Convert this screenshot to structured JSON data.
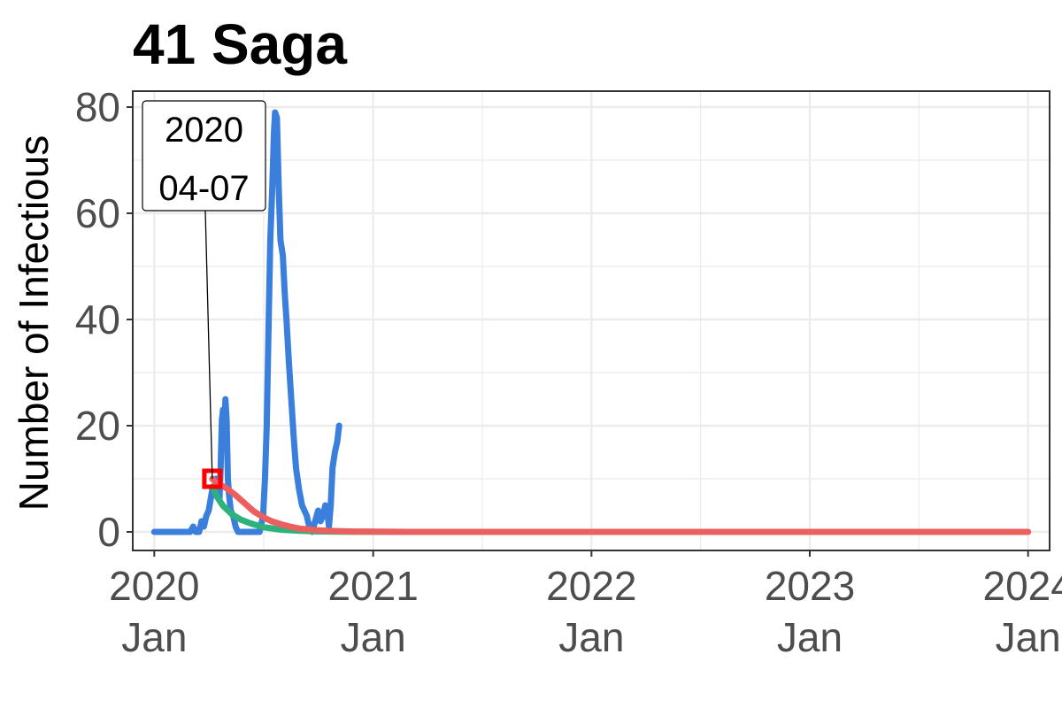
{
  "chart_data": {
    "type": "line",
    "title": "41 Saga",
    "xlabel": "",
    "ylabel": "Number of Infectious",
    "xlim": [
      "2019-11-26",
      "2024-02-06"
    ],
    "ylim": [
      -3.5,
      83
    ],
    "yticks": [
      0,
      20,
      40,
      60,
      80
    ],
    "xticks": [
      {
        "date": "2020-01-01",
        "year": "2020",
        "month": "Jan"
      },
      {
        "date": "2021-01-01",
        "year": "2021",
        "month": "Jan"
      },
      {
        "date": "2022-01-01",
        "year": "2022",
        "month": "Jan"
      },
      {
        "date": "2023-01-01",
        "year": "2023",
        "month": "Jan"
      },
      {
        "date": "2024-01-01",
        "year": "2024",
        "month": "Jan"
      }
    ],
    "grid": true,
    "legend": "none",
    "series": [
      {
        "color": "#3a7fdc",
        "points": [
          [
            "2020-01-01",
            0
          ],
          [
            "2020-03-01",
            0
          ],
          [
            "2020-03-06",
            1
          ],
          [
            "2020-03-10",
            0
          ],
          [
            "2020-03-16",
            0
          ],
          [
            "2020-03-20",
            2
          ],
          [
            "2020-03-24",
            1
          ],
          [
            "2020-03-28",
            3
          ],
          [
            "2020-04-01",
            4
          ],
          [
            "2020-04-04",
            6
          ],
          [
            "2020-04-07",
            8
          ],
          [
            "2020-04-10",
            7
          ],
          [
            "2020-04-13",
            10
          ],
          [
            "2020-04-16",
            9
          ],
          [
            "2020-04-19",
            6
          ],
          [
            "2020-04-21",
            12
          ],
          [
            "2020-04-23",
            21
          ],
          [
            "2020-04-25",
            23
          ],
          [
            "2020-04-27",
            17
          ],
          [
            "2020-04-29",
            25
          ],
          [
            "2020-05-01",
            21
          ],
          [
            "2020-05-03",
            10
          ],
          [
            "2020-05-05",
            7
          ],
          [
            "2020-05-08",
            4
          ],
          [
            "2020-05-12",
            3
          ],
          [
            "2020-05-16",
            1
          ],
          [
            "2020-05-20",
            0
          ],
          [
            "2020-06-25",
            0
          ],
          [
            "2020-07-01",
            3
          ],
          [
            "2020-07-04",
            10
          ],
          [
            "2020-07-07",
            20
          ],
          [
            "2020-07-10",
            38
          ],
          [
            "2020-07-13",
            55
          ],
          [
            "2020-07-16",
            64
          ],
          [
            "2020-07-19",
            75
          ],
          [
            "2020-07-21",
            79
          ],
          [
            "2020-07-24",
            78
          ],
          [
            "2020-07-27",
            65
          ],
          [
            "2020-07-30",
            55
          ],
          [
            "2020-08-03",
            52
          ],
          [
            "2020-08-06",
            45
          ],
          [
            "2020-08-09",
            40
          ],
          [
            "2020-08-13",
            32
          ],
          [
            "2020-08-17",
            25
          ],
          [
            "2020-08-21",
            18
          ],
          [
            "2020-08-25",
            12
          ],
          [
            "2020-08-30",
            8
          ],
          [
            "2020-09-04",
            5
          ],
          [
            "2020-09-08",
            4
          ],
          [
            "2020-09-12",
            3
          ],
          [
            "2020-09-16",
            1
          ],
          [
            "2020-09-21",
            0
          ],
          [
            "2020-09-26",
            2
          ],
          [
            "2020-10-01",
            4
          ],
          [
            "2020-10-05",
            2
          ],
          [
            "2020-10-09",
            3
          ],
          [
            "2020-10-13",
            5
          ],
          [
            "2020-10-16",
            4
          ],
          [
            "2020-10-19",
            1
          ],
          [
            "2020-10-22",
            5
          ],
          [
            "2020-10-25",
            12
          ],
          [
            "2020-10-29",
            15
          ],
          [
            "2020-11-02",
            17
          ],
          [
            "2020-11-05",
            20
          ]
        ]
      },
      {
        "color": "#2db27d",
        "points": [
          [
            "2020-04-07",
            8.5
          ],
          [
            "2020-04-15",
            6.6
          ],
          [
            "2020-04-25",
            4.9
          ],
          [
            "2020-05-10",
            3.3
          ],
          [
            "2020-05-25",
            2.3
          ],
          [
            "2020-06-10",
            1.6
          ],
          [
            "2020-07-01",
            0.9
          ],
          [
            "2020-08-01",
            0.4
          ],
          [
            "2020-09-01",
            0.2
          ],
          [
            "2020-10-01",
            0.08
          ],
          [
            "2020-11-01",
            0.04
          ],
          [
            "2020-12-01",
            0.02
          ],
          [
            "2021-01-01",
            0.01
          ],
          [
            "2021-02-15",
            0
          ]
        ]
      },
      {
        "color": "#ec5f5f",
        "points": [
          [
            "2020-04-07",
            10
          ],
          [
            "2020-04-15",
            9.2
          ],
          [
            "2020-05-01",
            8.2
          ],
          [
            "2020-05-15",
            7
          ],
          [
            "2020-06-01",
            5.3
          ],
          [
            "2020-06-15",
            3.9
          ],
          [
            "2020-07-01",
            2.8
          ],
          [
            "2020-07-15",
            2.0
          ],
          [
            "2020-08-01",
            1.4
          ],
          [
            "2020-08-15",
            1.0
          ],
          [
            "2020-09-01",
            0.6
          ],
          [
            "2020-10-01",
            0.3
          ],
          [
            "2020-11-01",
            0.15
          ],
          [
            "2020-12-01",
            0.07
          ],
          [
            "2021-01-01",
            0.03
          ],
          [
            "2021-02-01",
            0.01
          ],
          [
            "2021-03-01",
            0
          ],
          [
            "2024-01-01",
            0
          ]
        ]
      }
    ],
    "highlight": {
      "date": "2020-04-07",
      "value": 10,
      "color": "#ff0000"
    },
    "annotation": {
      "line1": "2020",
      "line2": "04-07"
    }
  }
}
